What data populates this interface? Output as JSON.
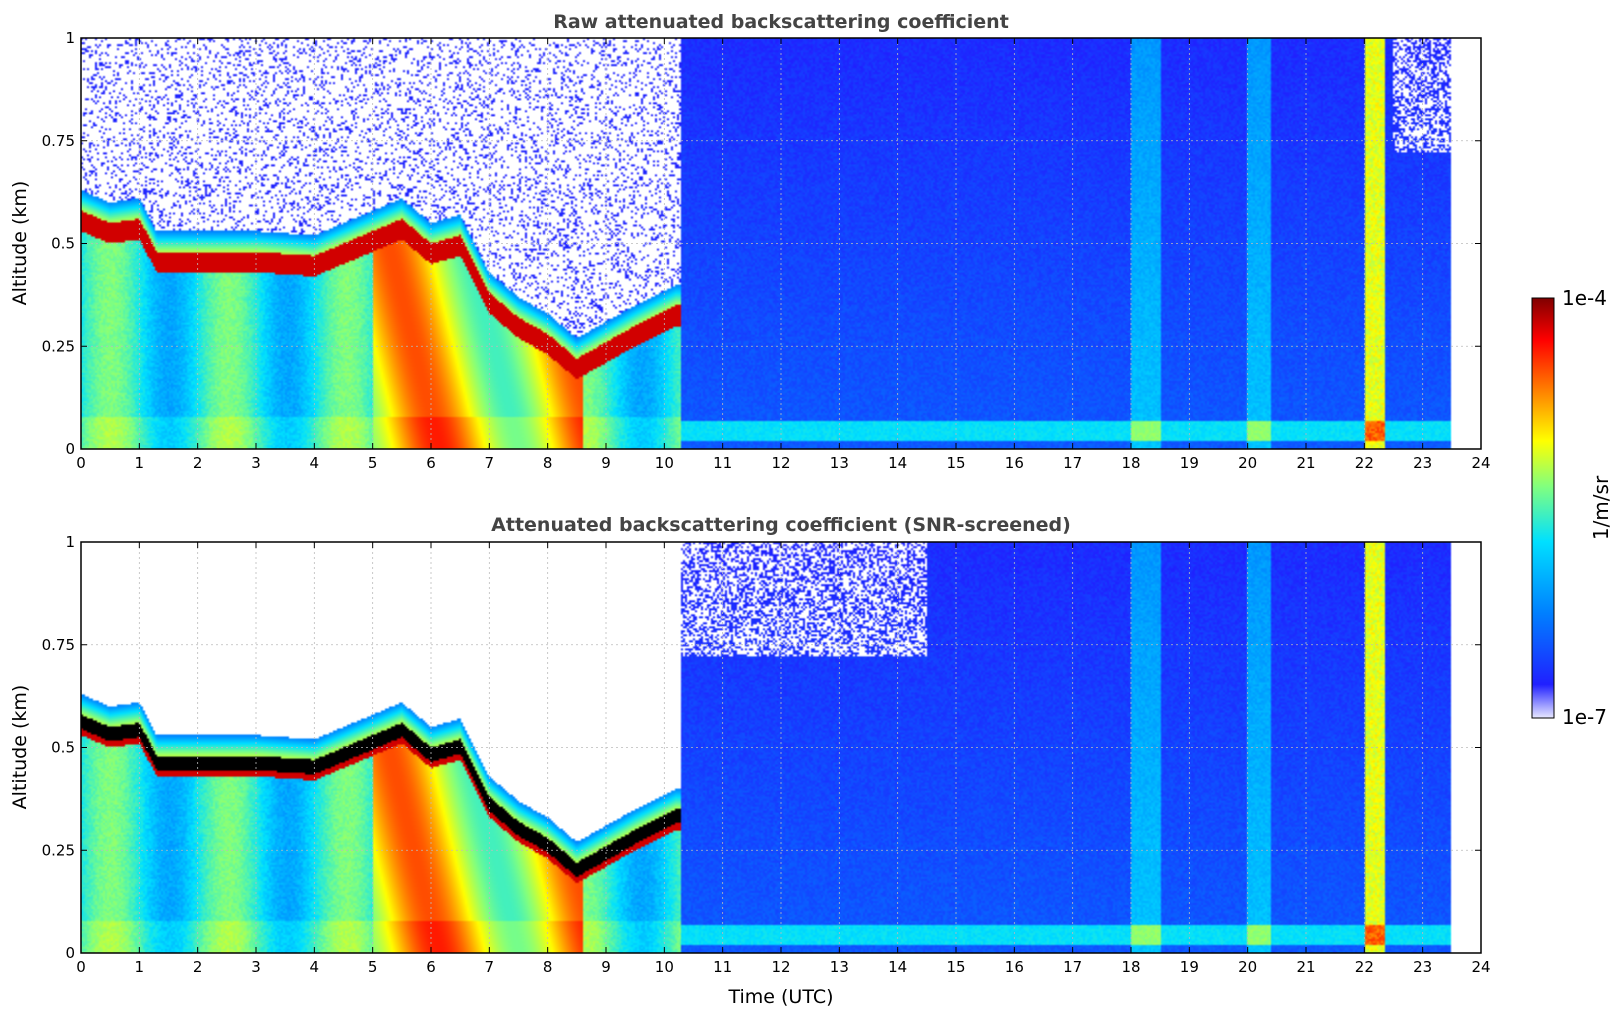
{
  "chart_data": [
    {
      "type": "heatmap",
      "title": "Raw attenuated backscattering coefficient",
      "xlabel": "",
      "ylabel": "Altitude (km)",
      "xlim": [
        0,
        24
      ],
      "ylim": [
        0,
        1
      ],
      "x_ticks": [
        "0",
        "1",
        "2",
        "3",
        "4",
        "5",
        "6",
        "7",
        "8",
        "9",
        "10",
        "11",
        "12",
        "13",
        "14",
        "15",
        "16",
        "17",
        "18",
        "19",
        "20",
        "21",
        "22",
        "23",
        "24"
      ],
      "y_ticks": [
        "0",
        "0.25",
        "0.5",
        "0.75",
        "1"
      ],
      "grid": true,
      "screened": false,
      "cloud_base_km": {
        "time": [
          0,
          0.5,
          1.0,
          1.3,
          2,
          3,
          4,
          4.5,
          5.5,
          6.0,
          6.5,
          7.0,
          7.5,
          8.0,
          8.5,
          9.5,
          10.2
        ],
        "altitude": [
          0.58,
          0.55,
          0.56,
          0.48,
          0.48,
          0.48,
          0.47,
          0.5,
          0.56,
          0.5,
          0.52,
          0.38,
          0.32,
          0.28,
          0.22,
          0.3,
          0.35
        ]
      }
    },
    {
      "type": "heatmap",
      "title": "Attenuated backscattering coefficient (SNR-screened)",
      "xlabel": "Time (UTC)",
      "ylabel": "Altitude (km)",
      "xlim": [
        0,
        24
      ],
      "ylim": [
        0,
        1
      ],
      "x_ticks": [
        "0",
        "1",
        "2",
        "3",
        "4",
        "5",
        "6",
        "7",
        "8",
        "9",
        "10",
        "11",
        "12",
        "13",
        "14",
        "15",
        "16",
        "17",
        "18",
        "19",
        "20",
        "21",
        "22",
        "23",
        "24"
      ],
      "y_ticks": [
        "0",
        "0.25",
        "0.5",
        "0.75",
        "1"
      ],
      "grid": true,
      "screened": true,
      "cloud_base_km": {
        "time": [
          0,
          0.5,
          1.0,
          1.3,
          2,
          3,
          4,
          4.5,
          5.5,
          6.0,
          6.5,
          7.0,
          7.5,
          8.0,
          8.5,
          9.5,
          10.2
        ],
        "altitude": [
          0.58,
          0.55,
          0.56,
          0.48,
          0.48,
          0.48,
          0.47,
          0.5,
          0.56,
          0.5,
          0.52,
          0.38,
          0.32,
          0.28,
          0.22,
          0.3,
          0.35
        ]
      }
    }
  ],
  "colorbar": {
    "label": "1/m/sr",
    "min_label": "1e-7",
    "max_label": "1e-4",
    "scale": "log",
    "colors": [
      "#e8e8ff",
      "#2020ff",
      "#0080ff",
      "#00e0ff",
      "#80ff80",
      "#ffff00",
      "#ff8000",
      "#ff0000",
      "#800000"
    ]
  }
}
